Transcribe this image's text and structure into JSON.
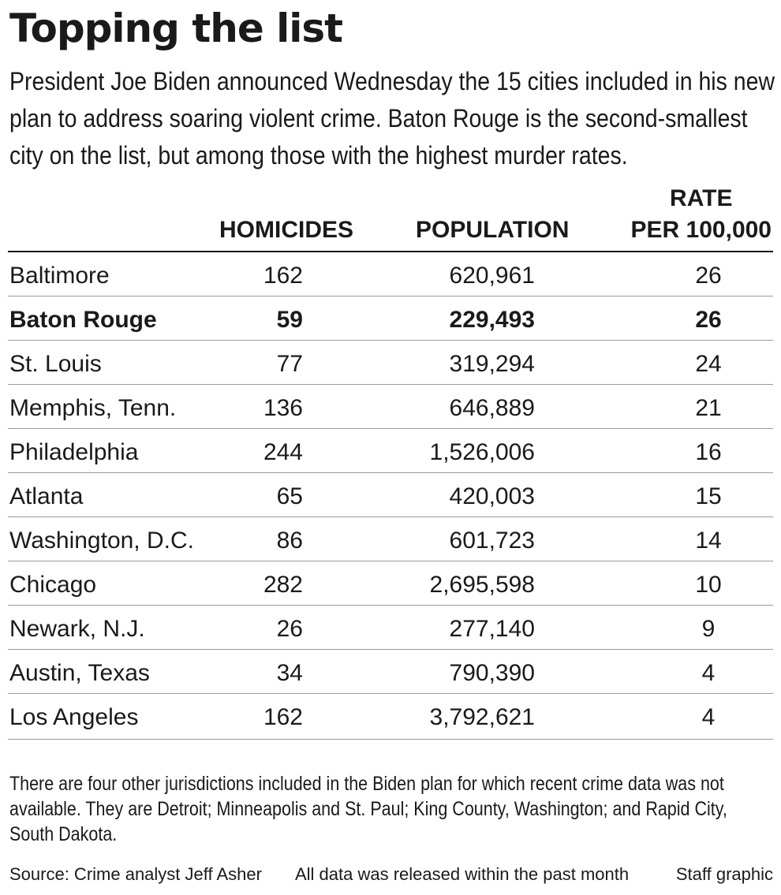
{
  "title": "Topping the list",
  "intro": "President Joe Biden announced Wednesday the 15 cities included in his new plan to address soaring violent crime. Baton Rouge is the second-smallest city on the list, but among those with the highest murder rates.",
  "chart_data": {
    "type": "table",
    "columns": [
      "",
      "HOMICIDES",
      "POPULATION",
      "RATE PER 100,000"
    ],
    "rate_header_lines": [
      "RATE",
      "PER 100,000"
    ],
    "highlight_row": "Baton Rouge",
    "rows": [
      {
        "city": "Baltimore",
        "homicides": "162",
        "population": "620,961",
        "rate": "26"
      },
      {
        "city": "Baton Rouge",
        "homicides": "59",
        "population": "229,493",
        "rate": "26",
        "bold": true
      },
      {
        "city": "St. Louis",
        "homicides": "77",
        "population": "319,294",
        "rate": "24"
      },
      {
        "city": "Memphis, Tenn.",
        "homicides": "136",
        "population": "646,889",
        "rate": "21"
      },
      {
        "city": "Philadelphia",
        "homicides": "244",
        "population": "1,526,006",
        "rate": "16"
      },
      {
        "city": "Atlanta",
        "homicides": "65",
        "population": "420,003",
        "rate": "15"
      },
      {
        "city": "Washington, D.C.",
        "homicides": "86",
        "population": "601,723",
        "rate": "14"
      },
      {
        "city": "Chicago",
        "homicides": "282",
        "population": "2,695,598",
        "rate": "10"
      },
      {
        "city": "Newark, N.J.",
        "homicides": "26",
        "population": "277,140",
        "rate": "9"
      },
      {
        "city": "Austin, Texas",
        "homicides": "34",
        "population": "790,390",
        "rate": "4"
      },
      {
        "city": "Los Angeles",
        "homicides": "162",
        "population": "3,792,621",
        "rate": "4"
      }
    ]
  },
  "footnote": "There are four other jurisdictions included in the Biden plan for which recent crime data was not available. They are Detroit; Minneapolis and St. Paul; King County, Washington; and Rapid City, South Dakota.",
  "credits": {
    "source": "Source: Crime analyst Jeff Asher",
    "note": "All data was released within the past month",
    "staff": "Staff graphic"
  }
}
